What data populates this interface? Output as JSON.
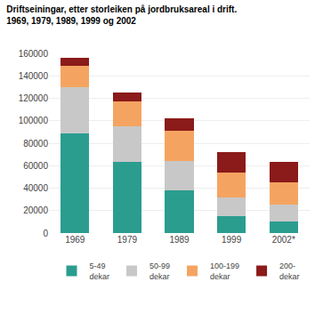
{
  "chart_data": {
    "type": "bar",
    "stacked": true,
    "title": "Driftseiningar, etter storleiken på jordbruksareal i drift.\n1969, 1979, 1989, 1999 og 2002",
    "categories": [
      "1969",
      "1979",
      "1989",
      "1999",
      "2002*"
    ],
    "series": [
      {
        "name": "5-49\ndekar",
        "color": "#2a9d8f",
        "values": [
          89000,
          63000,
          38000,
          15000,
          10000
        ]
      },
      {
        "name": "50-99\ndekar",
        "color": "#c8c8c8",
        "values": [
          41000,
          32000,
          26000,
          17000,
          15000
        ]
      },
      {
        "name": "100-199\ndekar",
        "color": "#f4a460",
        "values": [
          19000,
          22000,
          27000,
          22000,
          20000
        ]
      },
      {
        "name": "200-\ndekar",
        "color": "#8b1a1a",
        "values": [
          7000,
          8000,
          11000,
          18000,
          18000
        ]
      }
    ],
    "ylim": [
      0,
      160000
    ],
    "yticks": [
      0,
      20000,
      40000,
      60000,
      80000,
      100000,
      120000,
      140000,
      160000
    ],
    "grid": true,
    "legend": "bottom"
  }
}
